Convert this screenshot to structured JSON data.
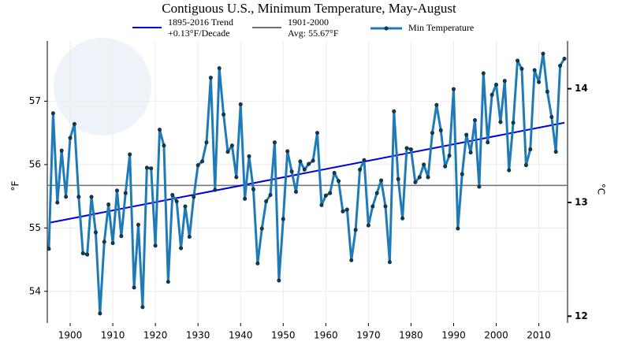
{
  "chart_data": {
    "type": "line",
    "title": "Contiguous U.S., Minimum Temperature, May-August",
    "ylabel": "°F",
    "y2label": "°C",
    "xlim": [
      1895,
      2016
    ],
    "xticks": [
      1900,
      1910,
      1920,
      1930,
      1940,
      1950,
      1960,
      1970,
      1980,
      1990,
      2000,
      2010
    ],
    "ylim": [
      53.5,
      57.95
    ],
    "yticks": [
      54,
      55,
      56,
      57
    ],
    "y2lim": [
      11.94,
      14.42
    ],
    "y2ticks": [
      12,
      13,
      14
    ],
    "grid": true,
    "x": [
      1895,
      1896,
      1897,
      1898,
      1899,
      1900,
      1901,
      1902,
      1903,
      1904,
      1905,
      1906,
      1907,
      1908,
      1909,
      1910,
      1911,
      1912,
      1913,
      1914,
      1915,
      1916,
      1917,
      1918,
      1919,
      1920,
      1921,
      1922,
      1923,
      1924,
      1925,
      1926,
      1927,
      1928,
      1929,
      1930,
      1931,
      1932,
      1933,
      1934,
      1935,
      1936,
      1937,
      1938,
      1939,
      1940,
      1941,
      1942,
      1943,
      1944,
      1945,
      1946,
      1947,
      1948,
      1949,
      1950,
      1951,
      1952,
      1953,
      1954,
      1955,
      1956,
      1957,
      1958,
      1959,
      1960,
      1961,
      1962,
      1963,
      1964,
      1965,
      1966,
      1967,
      1968,
      1969,
      1970,
      1971,
      1972,
      1973,
      1974,
      1975,
      1976,
      1977,
      1978,
      1979,
      1980,
      1981,
      1982,
      1983,
      1984,
      1985,
      1986,
      1987,
      1988,
      1989,
      1990,
      1991,
      1992,
      1993,
      1994,
      1995,
      1996,
      1997,
      1998,
      1999,
      2000,
      2001,
      2002,
      2003,
      2004,
      2005,
      2006,
      2007,
      2008,
      2009,
      2010,
      2011,
      2012,
      2013,
      2014,
      2015,
      2016
    ],
    "series": [
      {
        "name": "Min Temperature",
        "color": "#1f7bb8",
        "marker_color": "#1a3a4a",
        "values": [
          54.67,
          56.81,
          55.4,
          56.22,
          55.49,
          56.42,
          56.64,
          55.49,
          54.6,
          54.58,
          55.49,
          54.93,
          53.65,
          54.78,
          55.37,
          54.76,
          55.59,
          54.87,
          55.55,
          56.16,
          54.06,
          55.05,
          53.75,
          55.95,
          55.94,
          54.72,
          56.55,
          56.3,
          54.15,
          55.52,
          55.42,
          54.68,
          55.34,
          54.86,
          55.49,
          55.99,
          56.05,
          56.35,
          57.37,
          55.6,
          57.52,
          56.79,
          56.2,
          56.3,
          55.8,
          56.95,
          55.46,
          56.13,
          55.61,
          54.44,
          54.99,
          55.42,
          55.52,
          56.35,
          54.17,
          55.14,
          56.21,
          55.89,
          55.57,
          56.05,
          55.92,
          56.01,
          56.06,
          56.5,
          55.36,
          55.51,
          55.55,
          55.87,
          55.74,
          55.26,
          55.29,
          54.49,
          54.97,
          55.92,
          56.07,
          55.04,
          55.34,
          55.55,
          55.75,
          55.34,
          54.46,
          56.84,
          55.77,
          55.15,
          56.26,
          56.24,
          55.72,
          55.8,
          56.0,
          55.8,
          56.5,
          56.94,
          56.54,
          55.97,
          56.14,
          57.19,
          54.99,
          55.85,
          56.47,
          56.19,
          56.7,
          55.65,
          57.44,
          56.35,
          57.1,
          57.26,
          56.67,
          57.32,
          55.91,
          56.66,
          57.64,
          57.51,
          55.99,
          56.24,
          57.49,
          57.3,
          57.75,
          57.15,
          56.75,
          56.2,
          57.56,
          57.67
        ]
      }
    ],
    "trend": {
      "name": "1895-2016 Trend",
      "label": "+0.13°F/Decade",
      "color": "#0000dd",
      "x": [
        1895,
        2016
      ],
      "values": [
        55.08,
        56.66
      ]
    },
    "average": {
      "name": "1901-2000",
      "label": "Avg: 55.67°F",
      "color": "#707070",
      "value": 55.67
    }
  }
}
